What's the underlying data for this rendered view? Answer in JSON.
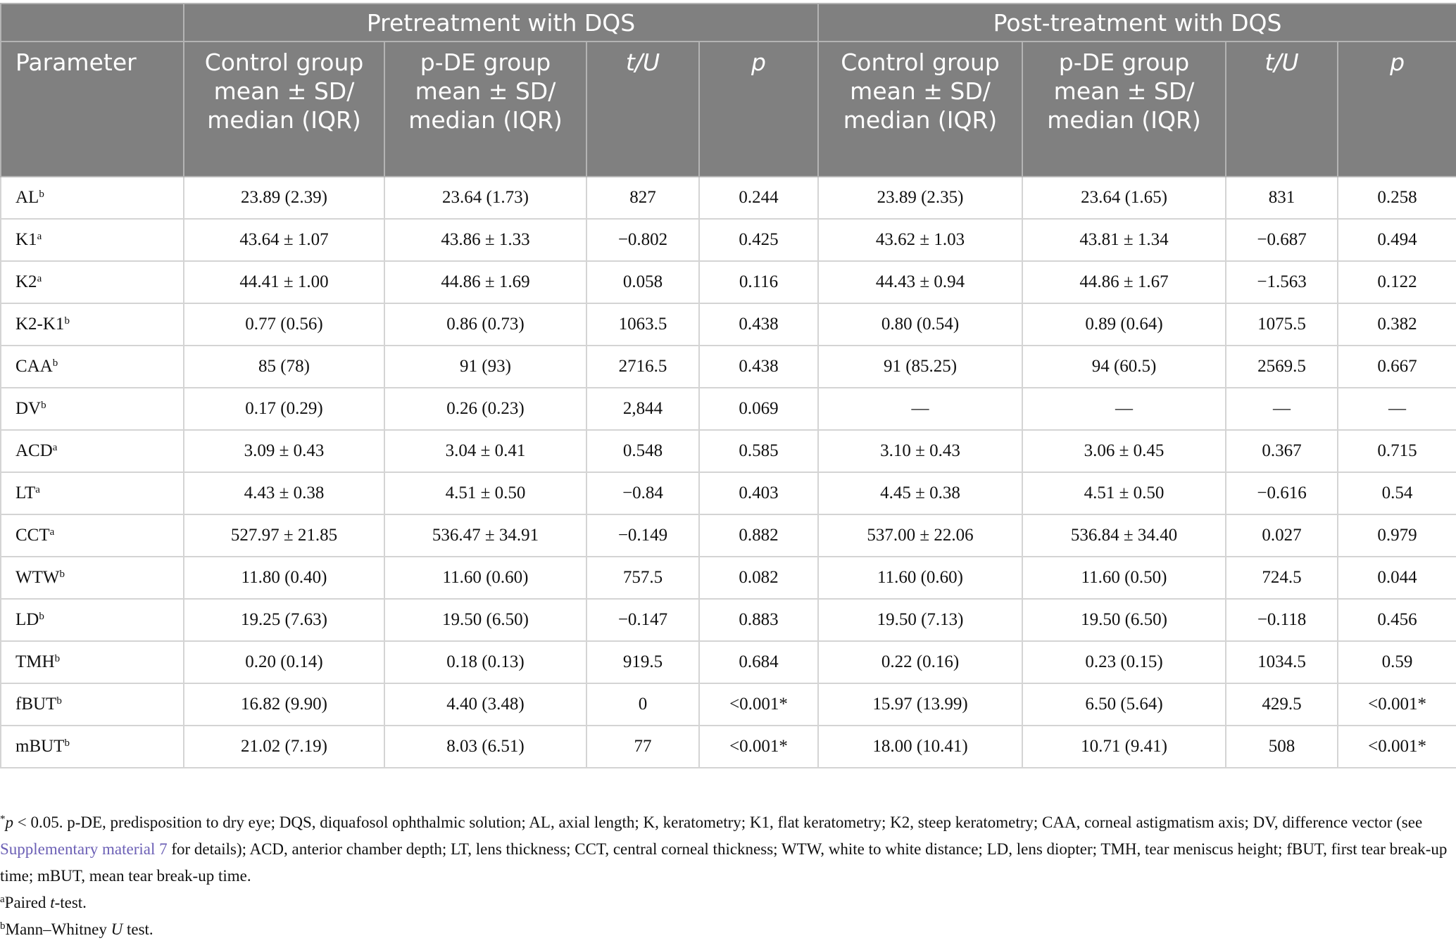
{
  "header": {
    "group_pre": "Pretreatment with DQS",
    "group_post": "Post-treatment with DQS",
    "parameter": "Parameter",
    "control_col": "Control group mean ± SD/ median (IQR)",
    "pde_col": "p-DE group mean ± SD/ median (IQR)",
    "tu_col": "t/U",
    "p_col": "p"
  },
  "rows": [
    {
      "param": "AL",
      "sup": "b",
      "pre": [
        "23.89 (2.39)",
        "23.64 (1.73)",
        "827",
        "0.244"
      ],
      "post": [
        "23.89 (2.35)",
        "23.64 (1.65)",
        "831",
        "0.258"
      ]
    },
    {
      "param": "K1",
      "sup": "a",
      "pre": [
        "43.64 ± 1.07",
        "43.86 ± 1.33",
        "−0.802",
        "0.425"
      ],
      "post": [
        "43.62 ± 1.03",
        "43.81 ± 1.34",
        "−0.687",
        "0.494"
      ]
    },
    {
      "param": "K2",
      "sup": "a",
      "pre": [
        "44.41 ± 1.00",
        "44.86 ± 1.69",
        "0.058",
        "0.116"
      ],
      "post": [
        "44.43 ± 0.94",
        "44.86 ± 1.67",
        "−1.563",
        "0.122"
      ]
    },
    {
      "param": "K2-K1",
      "sup": "b",
      "pre": [
        "0.77 (0.56)",
        "0.86 (0.73)",
        "1063.5",
        "0.438"
      ],
      "post": [
        "0.80 (0.54)",
        "0.89 (0.64)",
        "1075.5",
        "0.382"
      ]
    },
    {
      "param": "CAA",
      "sup": "b",
      "pre": [
        "85 (78)",
        "91 (93)",
        "2716.5",
        "0.438"
      ],
      "post": [
        "91 (85.25)",
        "94 (60.5)",
        "2569.5",
        "0.667"
      ]
    },
    {
      "param": "DV",
      "sup": "b",
      "pre": [
        "0.17 (0.29)",
        "0.26 (0.23)",
        "2,844",
        "0.069"
      ],
      "post": [
        "—",
        "—",
        "—",
        "—"
      ]
    },
    {
      "param": "ACD",
      "sup": "a",
      "pre": [
        "3.09 ± 0.43",
        "3.04 ± 0.41",
        "0.548",
        "0.585"
      ],
      "post": [
        "3.10 ± 0.43",
        "3.06 ± 0.45",
        "0.367",
        "0.715"
      ]
    },
    {
      "param": "LT",
      "sup": "a",
      "pre": [
        "4.43 ± 0.38",
        "4.51 ± 0.50",
        "−0.84",
        "0.403"
      ],
      "post": [
        "4.45 ± 0.38",
        "4.51 ± 0.50",
        "−0.616",
        "0.54"
      ]
    },
    {
      "param": "CCT",
      "sup": "a",
      "pre": [
        "527.97 ± 21.85",
        "536.47 ± 34.91",
        "−0.149",
        "0.882"
      ],
      "post": [
        "537.00 ± 22.06",
        "536.84 ± 34.40",
        "0.027",
        "0.979"
      ]
    },
    {
      "param": "WTW",
      "sup": "b",
      "pre": [
        "11.80 (0.40)",
        "11.60 (0.60)",
        "757.5",
        "0.082"
      ],
      "post": [
        "11.60 (0.60)",
        "11.60 (0.50)",
        "724.5",
        "0.044"
      ]
    },
    {
      "param": "LD",
      "sup": "b",
      "pre": [
        "19.25 (7.63)",
        "19.50 (6.50)",
        "−0.147",
        "0.883"
      ],
      "post": [
        "19.50 (7.13)",
        "19.50 (6.50)",
        "−0.118",
        "0.456"
      ]
    },
    {
      "param": "TMH",
      "sup": "b",
      "pre": [
        "0.20 (0.14)",
        "0.18 (0.13)",
        "919.5",
        "0.684"
      ],
      "post": [
        "0.22 (0.16)",
        "0.23 (0.15)",
        "1034.5",
        "0.59"
      ]
    },
    {
      "param": "fBUT",
      "sup": "b",
      "pre": [
        "16.82 (9.90)",
        "4.40 (3.48)",
        "0",
        "<0.001*"
      ],
      "post": [
        "15.97 (13.99)",
        "6.50 (5.64)",
        "429.5",
        "<0.001*"
      ]
    },
    {
      "param": "mBUT",
      "sup": "b",
      "pre": [
        "21.02 (7.19)",
        "8.03 (6.51)",
        "77",
        "<0.001*"
      ],
      "post": [
        "18.00 (10.41)",
        "10.71 (9.41)",
        "508",
        "<0.001*"
      ]
    }
  ],
  "footnotes": {
    "star_mark": "*",
    "star_p": "p",
    "star_text_1": " < 0.05. p-DE, predisposition to dry eye; DQS, diquafosol ophthalmic solution; AL, axial length; K, keratometry; K1, flat keratometry; K2, steep keratometry; CAA, corneal astigmatism axis; DV, difference vector (see ",
    "link": "Supplementary material 7",
    "star_text_2": " for details); ACD, anterior chamber depth; LT, lens thickness; CCT, central corneal thickness; WTW, white to white distance; LD, lens diopter; TMH, tear meniscus height; fBUT, first tear break-up time; mBUT, mean tear break-up time.",
    "a_mark": "a",
    "a_text_1": "Paired ",
    "a_italic": "t",
    "a_text_2": "-test.",
    "b_mark": "b",
    "b_text_1": "Mann–Whitney ",
    "b_italic": "U",
    "b_text_2": " test."
  }
}
